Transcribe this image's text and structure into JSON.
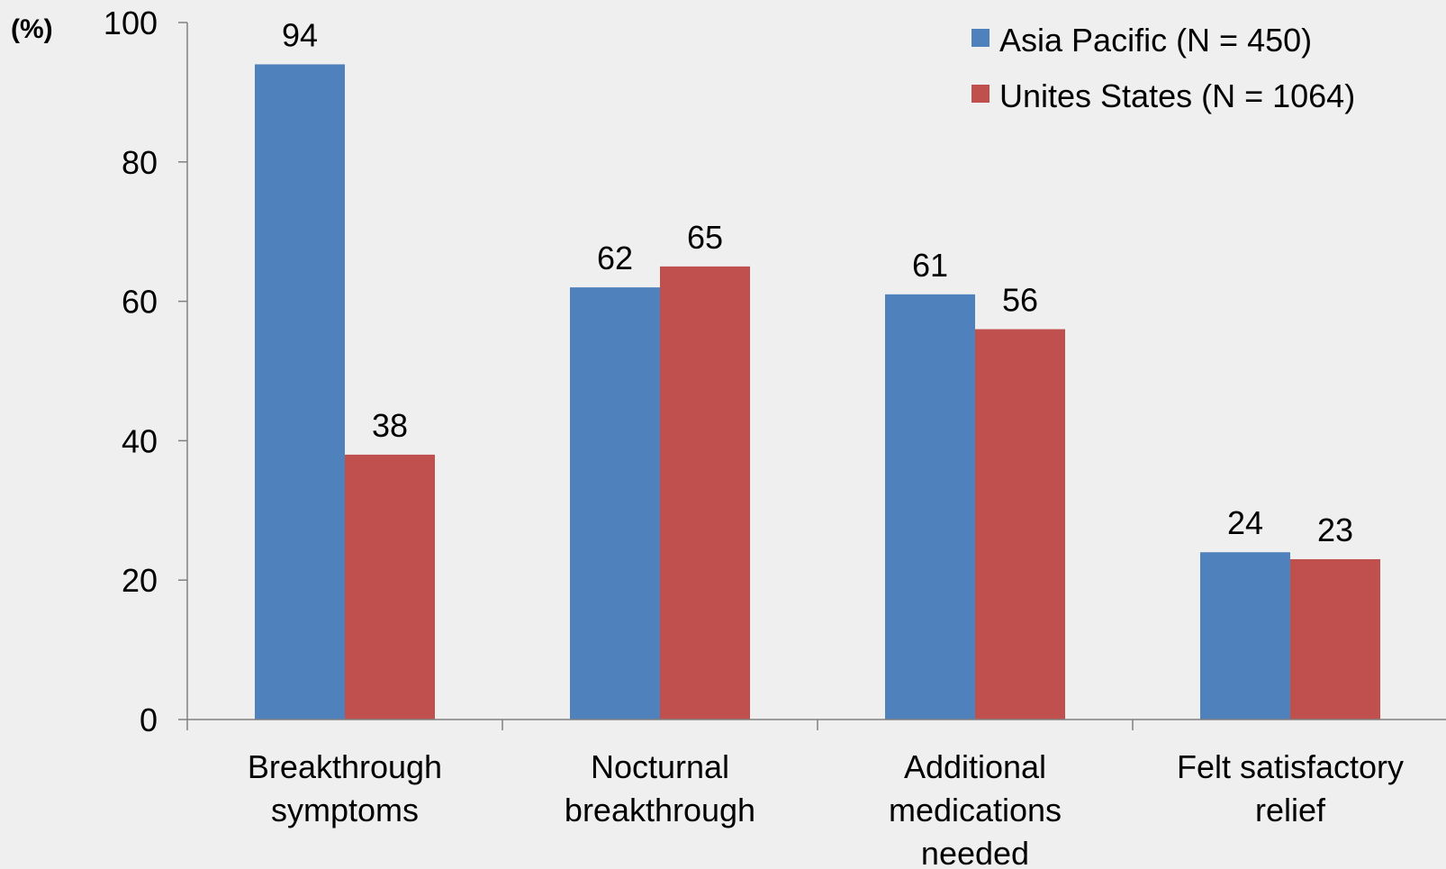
{
  "chart_data": {
    "type": "bar",
    "title": "",
    "ylabel": "(%)",
    "xlabel": "",
    "ylim": [
      0,
      100
    ],
    "yticks": [
      0,
      20,
      40,
      60,
      80,
      100
    ],
    "grid": false,
    "legend_position": "top-right",
    "categories": [
      [
        "Breakthrough",
        "symptoms"
      ],
      [
        "Nocturnal",
        "breakthrough"
      ],
      [
        "Additional",
        "medications",
        "needed"
      ],
      [
        "Felt satisfactory",
        "relief"
      ]
    ],
    "series": [
      {
        "name": "Asia Pacific (N = 450)",
        "color": "#4f81bd",
        "values": [
          94,
          62,
          61,
          24
        ]
      },
      {
        "name": "Unites States (N = 1064)",
        "color": "#c0504d",
        "values": [
          38,
          65,
          56,
          23
        ]
      }
    ]
  }
}
